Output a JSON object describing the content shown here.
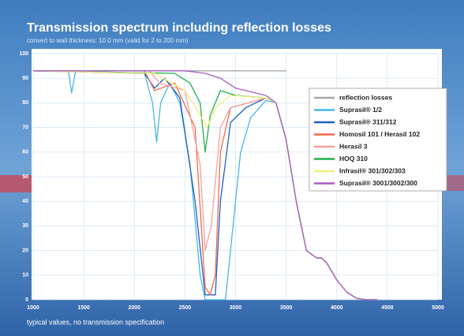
{
  "chart_data": {
    "type": "line",
    "title": "Transmission spectrum including reflection losses",
    "subtitle": "convert to wall thickness: 10.0 mm (valid for 2 to 200 mm)",
    "footnote": "typical values, no transmission specification",
    "xlim": [
      1000,
      5000
    ],
    "xticks": [
      1000,
      1500,
      2000,
      2500,
      3000,
      3500,
      4000,
      4500,
      5000
    ],
    "ylim": [
      0,
      100
    ],
    "yticks": [
      0,
      10,
      20,
      30,
      40,
      50,
      60,
      70,
      80,
      90,
      100
    ],
    "grid": true,
    "legend": "right",
    "series": [
      {
        "name": "reflection losses",
        "color": "#a8a8a8",
        "x": [
          1000,
          3500
        ],
        "values": [
          93,
          93
        ]
      },
      {
        "name": "Suprasil® 1/2",
        "color": "#48b4ee",
        "x": [
          1000,
          1350,
          1380,
          1420,
          2100,
          2180,
          2220,
          2260,
          2350,
          2450,
          2550,
          2650,
          2700,
          2900,
          2950,
          3050,
          3150,
          3300,
          3400,
          3500,
          3600,
          3700,
          3800,
          3850,
          3900,
          4000,
          4100,
          4200,
          4300,
          4400
        ],
        "values": [
          93,
          93,
          84,
          93,
          92,
          80,
          64,
          80,
          88,
          80,
          55,
          10,
          0,
          0,
          20,
          60,
          74,
          81,
          80,
          65,
          40,
          20,
          17,
          17,
          15,
          8,
          3,
          0.5,
          0,
          0
        ]
      },
      {
        "name": "Suprasil® 311/312",
        "color": "#1f5fc0",
        "x": [
          1000,
          2100,
          2200,
          2300,
          2450,
          2600,
          2700,
          2800,
          2850,
          2950,
          3100,
          3300,
          3400,
          3500,
          3600,
          3700,
          3800,
          3850,
          3900,
          4000,
          4100,
          4200,
          4300,
          4400
        ],
        "values": [
          93,
          92,
          86,
          90,
          82,
          40,
          2,
          2,
          40,
          72,
          78,
          82,
          80,
          65,
          40,
          20,
          17,
          17,
          15,
          8,
          3,
          0.5,
          0,
          0
        ]
      },
      {
        "name": "Homosil 101 / Herasil 102",
        "color": "#f26a4a",
        "x": [
          1000,
          2100,
          2200,
          2400,
          2600,
          2700,
          2750,
          2800,
          2850,
          2950,
          3300,
          3400,
          3500,
          3600,
          3700,
          3800,
          3850,
          3900,
          4000,
          4100,
          4200,
          4300,
          4400
        ],
        "values": [
          93,
          93,
          85,
          88,
          70,
          5,
          2,
          10,
          60,
          78,
          82,
          80,
          65,
          40,
          20,
          17,
          17,
          15,
          8,
          3,
          0.5,
          0,
          0
        ]
      },
      {
        "name": "Herasil 3",
        "color": "#f4a0a0",
        "x": [
          1000,
          2150,
          2250,
          2500,
          2650,
          2700,
          2760,
          2850,
          2950,
          3300,
          3400,
          3500,
          3600,
          3700,
          3800,
          3850,
          3900,
          4000,
          4100,
          4200,
          4300,
          4400
        ],
        "values": [
          93,
          93,
          88,
          85,
          55,
          20,
          30,
          70,
          78,
          82,
          80,
          65,
          40,
          20,
          17,
          17,
          15,
          8,
          3,
          0.5,
          0,
          0
        ]
      },
      {
        "name": "HOQ 310",
        "color": "#22b04a",
        "x": [
          1000,
          2400,
          2550,
          2650,
          2700,
          2750,
          2850,
          3000,
          3300,
          3400,
          3500,
          3600,
          3700,
          3800,
          3850,
          3900,
          4000,
          4100,
          4200,
          4300,
          4400
        ],
        "values": [
          93,
          92,
          88,
          80,
          60,
          75,
          85,
          83,
          82,
          80,
          65,
          40,
          20,
          17,
          17,
          15,
          8,
          3,
          0.5,
          0,
          0
        ]
      },
      {
        "name": "Infrasil® 301/302/303",
        "color": "#f2ee7a",
        "x": [
          1000,
          2200,
          2500,
          2650,
          2720,
          2800,
          2950,
          3300,
          3400,
          3500,
          3600,
          3700,
          3800,
          3850,
          3900,
          4000,
          4100,
          4200,
          4300,
          4400
        ],
        "values": [
          93,
          92,
          85,
          75,
          70,
          78,
          83,
          82,
          80,
          65,
          40,
          20,
          17,
          17,
          15,
          8,
          3,
          0.5,
          0,
          0
        ]
      },
      {
        "name": "Suprasil® 3001/3002/300",
        "color": "#a85cc8",
        "x": [
          1000,
          2500,
          2700,
          2850,
          3000,
          3200,
          3300,
          3400,
          3500,
          3600,
          3700,
          3800,
          3850,
          3900,
          4000,
          4100,
          4200,
          4300,
          4400
        ],
        "values": [
          93,
          93,
          92,
          90,
          86,
          84,
          83,
          80,
          65,
          40,
          20,
          17,
          17,
          15,
          8,
          3,
          0.5,
          0,
          0
        ]
      }
    ]
  }
}
